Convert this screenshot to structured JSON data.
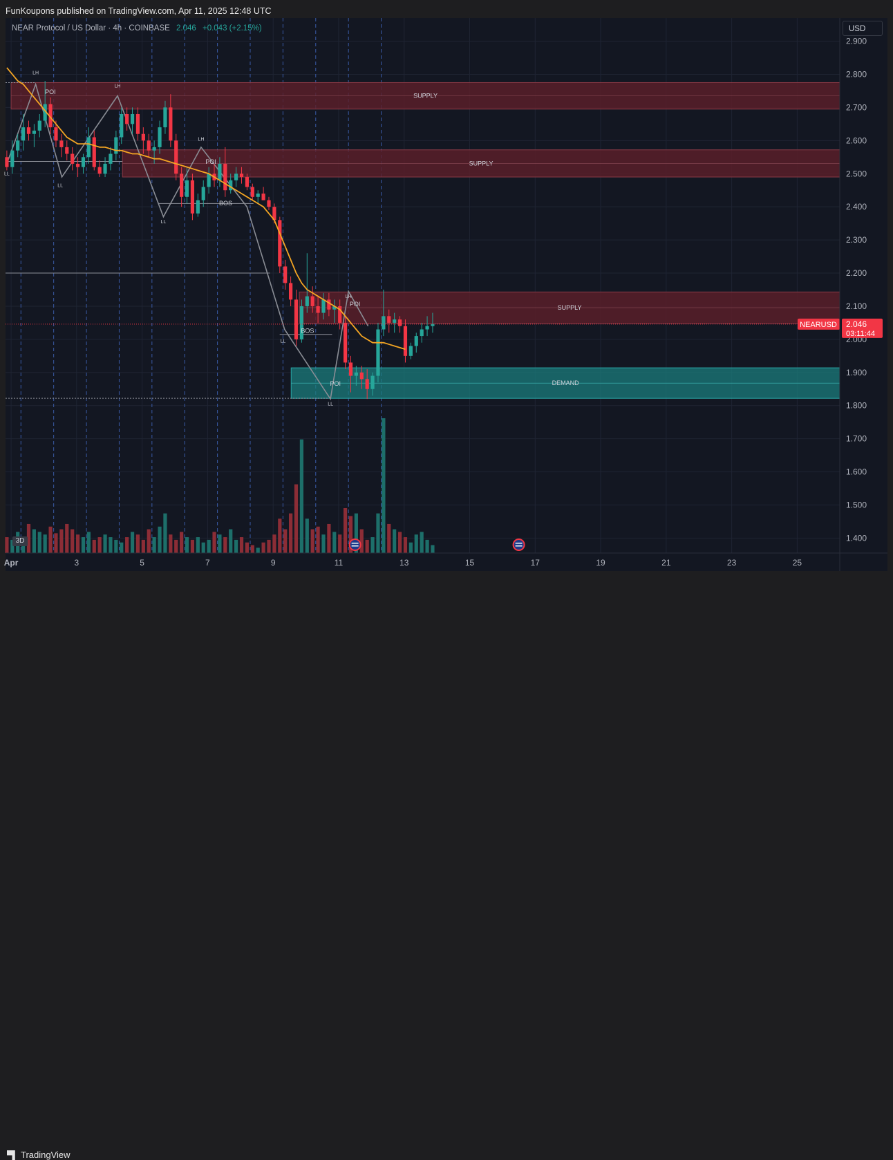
{
  "published": "FunKoupons published on TradingView.com, Apr 11, 2025 12:48 UTC",
  "symbol": {
    "name": "NEAR Protocol / US Dollar · 4h · COINBASE",
    "last": "2.046",
    "change": "+0.043 (+2.15%)"
  },
  "currency": "USD",
  "badge_3d": "3D",
  "footer_brand": "TradingView",
  "price_label": {
    "ticker": "NEARUSD",
    "price": "2.046",
    "countdown": "03:11:44"
  },
  "colors": {
    "background": "#131722",
    "up": "#26a69a",
    "down": "#f23645",
    "ma": "#f5a623",
    "supply_zone": "#5b1f2a",
    "demand_zone": "#1e6b6b",
    "structure": "#9a9ca3"
  },
  "chart_data": {
    "type": "candlestick",
    "title": "NEAR Protocol / US Dollar · 4h · COINBASE",
    "y_axis": {
      "ticks": [
        "2.900",
        "2.800",
        "2.700",
        "2.600",
        "2.500",
        "2.400",
        "2.300",
        "2.200",
        "2.100",
        "2.000",
        "1.900",
        "1.800",
        "1.700",
        "1.600",
        "1.500",
        "1.400"
      ],
      "range": [
        1.355,
        2.97
      ]
    },
    "x_axis": {
      "ticks": [
        "Apr",
        "3",
        "5",
        "7",
        "9",
        "11",
        "13",
        "15",
        "17",
        "19",
        "21",
        "23",
        "25"
      ],
      "unit": "day (April 2025)",
      "range": [
        0.83,
        26.3
      ]
    },
    "zones": [
      {
        "type": "supply",
        "label": "SUPPLY",
        "from_day": 1.0,
        "top": 2.775,
        "bottom": 2.695
      },
      {
        "type": "supply",
        "label": "SUPPLY",
        "from_day": 4.4,
        "top": 2.572,
        "bottom": 2.49
      },
      {
        "type": "supply",
        "label": "SUPPLY",
        "from_day": 9.8,
        "top": 2.143,
        "bottom": 2.048
      },
      {
        "type": "demand",
        "label": "DEMAND",
        "from_day": 9.55,
        "top": 1.914,
        "bottom": 1.822
      }
    ],
    "structure_labels": [
      {
        "text": "LH",
        "day": 1.75,
        "price": 2.8
      },
      {
        "text": "POI",
        "day": 2.2,
        "price": 2.74
      },
      {
        "text": "LL",
        "day": 0.87,
        "price": 2.495
      },
      {
        "text": "LL",
        "day": 2.5,
        "price": 2.46
      },
      {
        "text": "LH",
        "day": 4.25,
        "price": 2.76
      },
      {
        "text": "LH",
        "day": 6.8,
        "price": 2.6
      },
      {
        "text": "POI",
        "day": 7.1,
        "price": 2.53
      },
      {
        "text": "LL",
        "day": 5.65,
        "price": 2.35
      },
      {
        "text": "BOS",
        "day": 7.55,
        "price": 2.405
      },
      {
        "text": "LL",
        "day": 9.3,
        "price": 1.99
      },
      {
        "text": "BOS",
        "day": 10.05,
        "price": 2.02
      },
      {
        "text": "LH",
        "day": 11.3,
        "price": 2.125
      },
      {
        "text": "POI",
        "day": 11.5,
        "price": 2.1
      },
      {
        "text": "POI",
        "day": 10.9,
        "price": 1.86
      },
      {
        "text": "LL",
        "day": 10.75,
        "price": 1.8
      }
    ],
    "structure_path": [
      [
        0.87,
        2.53
      ],
      [
        1.75,
        2.77
      ],
      [
        2.55,
        2.49
      ],
      [
        4.25,
        2.735
      ],
      [
        5.65,
        2.37
      ],
      [
        6.8,
        2.58
      ],
      [
        8.2,
        2.4
      ],
      [
        9.35,
        2.03
      ],
      [
        10.75,
        1.82
      ],
      [
        11.3,
        2.145
      ],
      [
        11.9,
        2.04
      ]
    ],
    "horizontal_levels": [
      {
        "price": 2.775,
        "from_day": 0.83,
        "to_day": 1.75,
        "style": "dotted"
      },
      {
        "price": 2.537,
        "from_day": 0.83,
        "to_day": 4.4,
        "style": "solid"
      },
      {
        "price": 2.41,
        "from_day": 5.5,
        "to_day": 8.4,
        "style": "solid"
      },
      {
        "price": 2.2,
        "from_day": 0.83,
        "to_day": 8.9,
        "style": "solid"
      },
      {
        "price": 2.015,
        "from_day": 9.2,
        "to_day": 10.8,
        "style": "solid"
      },
      {
        "price": 1.822,
        "from_day": 0.83,
        "to_day": 10.7,
        "style": "dotted"
      }
    ],
    "session_separators": [
      1.3,
      2.3,
      3.3,
      4.3,
      5.3,
      6.3,
      7.3,
      8.3,
      9.3,
      10.3,
      11.3,
      12.3
    ],
    "ohlc": [
      [
        2.55,
        2.57,
        2.51,
        2.52
      ],
      [
        2.52,
        2.6,
        2.5,
        2.57
      ],
      [
        2.57,
        2.62,
        2.55,
        2.6
      ],
      [
        2.6,
        2.68,
        2.57,
        2.64
      ],
      [
        2.64,
        2.66,
        2.6,
        2.62
      ],
      [
        2.62,
        2.65,
        2.58,
        2.63
      ],
      [
        2.63,
        2.68,
        2.61,
        2.66
      ],
      [
        2.66,
        2.78,
        2.64,
        2.71
      ],
      [
        2.71,
        2.73,
        2.62,
        2.64
      ],
      [
        2.64,
        2.66,
        2.58,
        2.6
      ],
      [
        2.6,
        2.62,
        2.55,
        2.58
      ],
      [
        2.58,
        2.6,
        2.54,
        2.56
      ],
      [
        2.56,
        2.58,
        2.51,
        2.53
      ],
      [
        2.53,
        2.55,
        2.49,
        2.52
      ],
      [
        2.52,
        2.56,
        2.5,
        2.55
      ],
      [
        2.55,
        2.64,
        2.53,
        2.61
      ],
      [
        2.61,
        2.63,
        2.51,
        2.52
      ],
      [
        2.52,
        2.54,
        2.49,
        2.5
      ],
      [
        2.5,
        2.55,
        2.49,
        2.53
      ],
      [
        2.53,
        2.58,
        2.51,
        2.56
      ],
      [
        2.56,
        2.63,
        2.54,
        2.61
      ],
      [
        2.61,
        2.7,
        2.59,
        2.68
      ],
      [
        2.68,
        2.7,
        2.63,
        2.65
      ],
      [
        2.65,
        2.7,
        2.62,
        2.68
      ],
      [
        2.68,
        2.7,
        2.6,
        2.62
      ],
      [
        2.62,
        2.64,
        2.56,
        2.6
      ],
      [
        2.6,
        2.62,
        2.55,
        2.57
      ],
      [
        2.57,
        2.6,
        2.53,
        2.58
      ],
      [
        2.58,
        2.66,
        2.56,
        2.64
      ],
      [
        2.64,
        2.72,
        2.62,
        2.7
      ],
      [
        2.7,
        2.74,
        2.58,
        2.6
      ],
      [
        2.6,
        2.62,
        2.48,
        2.5
      ],
      [
        2.5,
        2.52,
        2.4,
        2.43
      ],
      [
        2.43,
        2.52,
        2.41,
        2.48
      ],
      [
        2.48,
        2.5,
        2.36,
        2.38
      ],
      [
        2.38,
        2.44,
        2.37,
        2.42
      ],
      [
        2.42,
        2.48,
        2.4,
        2.46
      ],
      [
        2.46,
        2.52,
        2.44,
        2.5
      ],
      [
        2.5,
        2.53,
        2.46,
        2.48
      ],
      [
        2.48,
        2.55,
        2.46,
        2.53
      ],
      [
        2.53,
        2.58,
        2.43,
        2.45
      ],
      [
        2.45,
        2.5,
        2.44,
        2.48
      ],
      [
        2.48,
        2.52,
        2.46,
        2.5
      ],
      [
        2.5,
        2.52,
        2.47,
        2.49
      ],
      [
        2.49,
        2.5,
        2.45,
        2.46
      ],
      [
        2.46,
        2.47,
        2.42,
        2.43
      ],
      [
        2.43,
        2.45,
        2.41,
        2.44
      ],
      [
        2.44,
        2.46,
        2.42,
        2.42
      ],
      [
        2.42,
        2.43,
        2.39,
        2.4
      ],
      [
        2.4,
        2.41,
        2.35,
        2.36
      ],
      [
        2.36,
        2.37,
        2.2,
        2.22
      ],
      [
        2.22,
        2.24,
        2.15,
        2.17
      ],
      [
        2.17,
        2.19,
        2.1,
        2.12
      ],
      [
        2.12,
        2.15,
        1.98,
        2.0
      ],
      [
        2.0,
        2.12,
        1.99,
        2.1
      ],
      [
        2.1,
        2.26,
        2.08,
        2.13
      ],
      [
        2.13,
        2.16,
        2.08,
        2.1
      ],
      [
        2.1,
        2.13,
        2.05,
        2.08
      ],
      [
        2.08,
        2.14,
        2.06,
        2.12
      ],
      [
        2.12,
        2.14,
        2.07,
        2.09
      ],
      [
        2.09,
        2.12,
        2.05,
        2.1
      ],
      [
        2.1,
        2.12,
        2.03,
        2.05
      ],
      [
        2.05,
        2.07,
        1.91,
        1.93
      ],
      [
        1.93,
        1.95,
        1.84,
        1.89
      ],
      [
        1.89,
        1.92,
        1.86,
        1.9
      ],
      [
        1.9,
        1.92,
        1.85,
        1.88
      ],
      [
        1.88,
        1.91,
        1.82,
        1.85
      ],
      [
        1.85,
        1.9,
        1.83,
        1.89
      ],
      [
        1.89,
        2.05,
        1.87,
        2.03
      ],
      [
        2.03,
        2.15,
        2.01,
        2.07
      ],
      [
        2.07,
        2.09,
        2.02,
        2.05
      ],
      [
        2.05,
        2.08,
        2.02,
        2.06
      ],
      [
        2.06,
        2.07,
        2.02,
        2.04
      ],
      [
        2.04,
        2.06,
        1.93,
        1.95
      ],
      [
        1.95,
        1.99,
        1.94,
        1.98
      ],
      [
        1.98,
        2.02,
        1.96,
        2.01
      ],
      [
        2.01,
        2.05,
        1.99,
        2.03
      ],
      [
        2.03,
        2.07,
        2.01,
        2.04
      ],
      [
        2.04,
        2.08,
        2.02,
        2.046
      ]
    ],
    "volume": [
      12,
      10,
      16,
      8,
      22,
      18,
      16,
      14,
      20,
      15,
      18,
      22,
      18,
      14,
      12,
      16,
      10,
      12,
      14,
      12,
      10,
      8,
      12,
      16,
      14,
      10,
      18,
      12,
      20,
      30,
      14,
      10,
      16,
      12,
      10,
      12,
      8,
      10,
      16,
      14,
      12,
      18,
      10,
      12,
      8,
      6,
      4,
      8,
      10,
      14,
      26,
      18,
      30,
      52,
      86,
      26,
      18,
      20,
      14,
      22,
      16,
      14,
      34,
      28,
      30,
      18,
      10,
      12,
      30,
      102,
      22,
      18,
      16,
      12,
      8,
      14,
      16,
      10,
      6
    ],
    "ma": {
      "name": "",
      "values": [
        2.82,
        2.8,
        2.78,
        2.77,
        2.75,
        2.73,
        2.71,
        2.69,
        2.67,
        2.65,
        2.63,
        2.61,
        2.6,
        2.59,
        2.59,
        2.59,
        2.585,
        2.58,
        2.58,
        2.575,
        2.57,
        2.57,
        2.565,
        2.56,
        2.56,
        2.555,
        2.55,
        2.545,
        2.545,
        2.54,
        2.535,
        2.53,
        2.525,
        2.52,
        2.515,
        2.51,
        2.505,
        2.5,
        2.49,
        2.48,
        2.47,
        2.46,
        2.45,
        2.44,
        2.43,
        2.42,
        2.41,
        2.4,
        2.38,
        2.36,
        2.32,
        2.28,
        2.24,
        2.2,
        2.17,
        2.15,
        2.14,
        2.13,
        2.12,
        2.11,
        2.1,
        2.09,
        2.07,
        2.05,
        2.03,
        2.01,
        2.0,
        1.99,
        1.99,
        1.99,
        1.985,
        1.98,
        1.975,
        1.97
      ]
    }
  }
}
